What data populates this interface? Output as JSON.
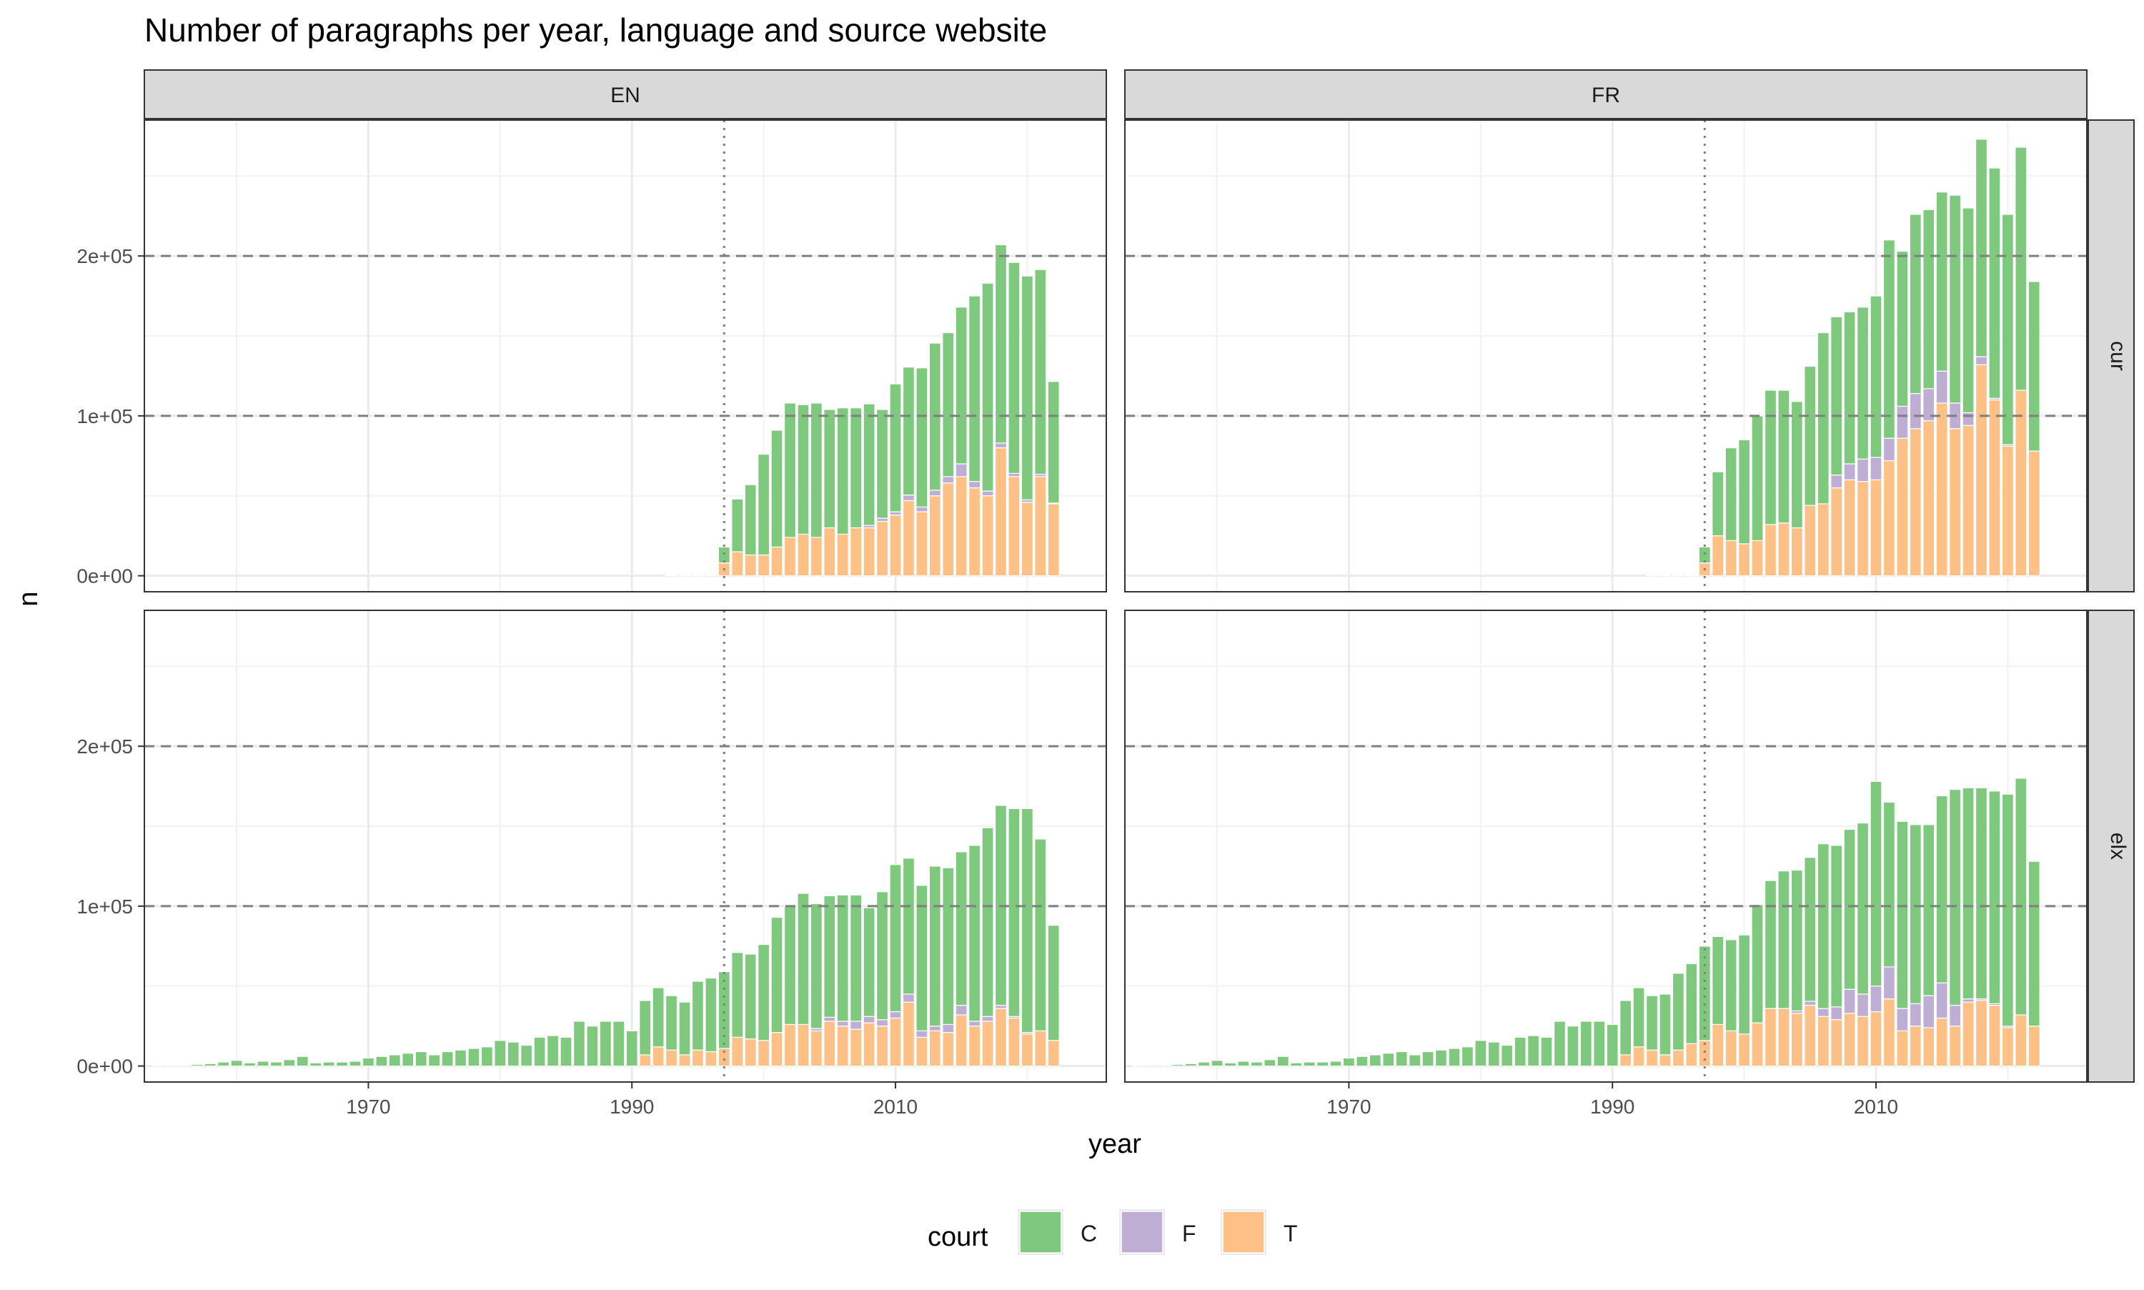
{
  "title": "Number of paragraphs per year, language and source website",
  "chart_data": {
    "type": "bar",
    "stacked": true,
    "title": "Number of paragraphs per year, language and source website",
    "xlabel": "year",
    "ylabel": "n",
    "x_ticks": [
      1970,
      1990,
      2010
    ],
    "y_ticks": [
      0,
      100000,
      200000
    ],
    "y_tick_labels": [
      "0e+00",
      "1e+05",
      "2e+05"
    ],
    "xlim": [
      1953,
      2026
    ],
    "ylim": [
      -10000,
      285000
    ],
    "reference_lines": {
      "horizontal_dashed": [
        100000,
        200000
      ],
      "vertical_dotted": 1997
    },
    "grid": true,
    "legend": {
      "title": "court",
      "position": "bottom",
      "entries": [
        "C",
        "F",
        "T"
      ]
    },
    "colors": {
      "C": "#7fc97f",
      "F": "#beaed4",
      "T": "#fdc086"
    },
    "facet_columns": [
      "EN",
      "FR"
    ],
    "facet_rows": [
      "cur",
      "elx"
    ],
    "panels": [
      {
        "col": "EN",
        "row": "cur",
        "series": {
          "x": [
            1993,
            1994,
            1995,
            1996,
            1997,
            1998,
            1999,
            2000,
            2001,
            2002,
            2003,
            2004,
            2005,
            2006,
            2007,
            2008,
            2009,
            2010,
            2011,
            2012,
            2013,
            2014,
            2015,
            2016,
            2017,
            2018,
            2019,
            2020,
            2021,
            2022
          ],
          "T": [
            300,
            300,
            300,
            300,
            8000,
            15000,
            13000,
            13000,
            18000,
            24000,
            26000,
            24000,
            30000,
            26000,
            30000,
            30000,
            34000,
            38000,
            47000,
            40000,
            50000,
            58000,
            62000,
            55000,
            50000,
            80000,
            62000,
            46000,
            62000,
            45000
          ],
          "F": [
            0,
            0,
            0,
            0,
            0,
            0,
            0,
            0,
            0,
            0,
            0,
            0,
            0,
            0,
            0,
            1500,
            2000,
            2000,
            3500,
            3000,
            3500,
            4000,
            8000,
            4000,
            3000,
            3000,
            2000,
            1500,
            1500,
            500
          ],
          "C": [
            200,
            200,
            200,
            200,
            10000,
            33000,
            44000,
            63000,
            73000,
            84000,
            81000,
            84000,
            74000,
            79000,
            75000,
            76000,
            68000,
            80000,
            80000,
            87000,
            92000,
            90000,
            98000,
            116000,
            130000,
            124000,
            132000,
            140000,
            128000,
            76000
          ]
        }
      },
      {
        "col": "FR",
        "row": "cur",
        "series": {
          "x": [
            1993,
            1994,
            1995,
            1996,
            1997,
            1998,
            1999,
            2000,
            2001,
            2002,
            2003,
            2004,
            2005,
            2006,
            2007,
            2008,
            2009,
            2010,
            2011,
            2012,
            2013,
            2014,
            2015,
            2016,
            2017,
            2018,
            2019,
            2020,
            2021,
            2022
          ],
          "T": [
            300,
            300,
            300,
            300,
            8000,
            25000,
            22000,
            20000,
            22000,
            32000,
            33000,
            30000,
            44000,
            45000,
            55000,
            60000,
            59000,
            60000,
            72000,
            86000,
            92000,
            97000,
            108000,
            92000,
            94000,
            132000,
            110000,
            81000,
            116000,
            78000
          ],
          "F": [
            0,
            0,
            0,
            0,
            0,
            0,
            0,
            0,
            0,
            0,
            0,
            0,
            0,
            0,
            8000,
            10000,
            14000,
            14000,
            14000,
            20000,
            22000,
            20000,
            20000,
            16000,
            8000,
            5000,
            1000,
            1000,
            0,
            0
          ],
          "C": [
            200,
            200,
            200,
            200,
            10000,
            40000,
            58000,
            65000,
            78000,
            84000,
            83000,
            79000,
            87000,
            107000,
            99000,
            95000,
            95000,
            101000,
            124000,
            97000,
            112000,
            112000,
            112000,
            130000,
            128000,
            136000,
            144000,
            144000,
            152000,
            106000
          ]
        }
      },
      {
        "col": "EN",
        "row": "elx",
        "series": {
          "x": [
            1954,
            1955,
            1956,
            1957,
            1958,
            1959,
            1960,
            1961,
            1962,
            1963,
            1964,
            1965,
            1966,
            1967,
            1968,
            1969,
            1970,
            1971,
            1972,
            1973,
            1974,
            1975,
            1976,
            1977,
            1978,
            1979,
            1980,
            1981,
            1982,
            1983,
            1984,
            1985,
            1986,
            1987,
            1988,
            1989,
            1990,
            1991,
            1992,
            1993,
            1994,
            1995,
            1996,
            1997,
            1998,
            1999,
            2000,
            2001,
            2002,
            2003,
            2004,
            2005,
            2006,
            2007,
            2008,
            2009,
            2010,
            2011,
            2012,
            2013,
            2014,
            2015,
            2016,
            2017,
            2018,
            2019,
            2020,
            2021,
            2022
          ],
          "T": [
            0,
            0,
            0,
            0,
            0,
            0,
            0,
            0,
            0,
            0,
            0,
            0,
            0,
            0,
            0,
            0,
            0,
            0,
            0,
            0,
            0,
            0,
            0,
            0,
            0,
            0,
            0,
            0,
            0,
            0,
            0,
            0,
            0,
            0,
            0,
            0,
            0,
            7000,
            12000,
            10000,
            7000,
            10000,
            9000,
            11000,
            18000,
            17000,
            16000,
            21000,
            26000,
            26000,
            22000,
            28000,
            25000,
            23000,
            27000,
            25000,
            30000,
            40000,
            18000,
            22000,
            21000,
            32000,
            25000,
            28000,
            36000,
            30000,
            20000,
            22000,
            16000
          ],
          "F": [
            0,
            0,
            0,
            0,
            0,
            0,
            0,
            0,
            0,
            0,
            0,
            0,
            0,
            0,
            0,
            0,
            0,
            0,
            0,
            0,
            0,
            0,
            0,
            0,
            0,
            0,
            0,
            0,
            0,
            0,
            0,
            0,
            0,
            0,
            0,
            0,
            0,
            0,
            0,
            0,
            0,
            0,
            0,
            0,
            0,
            0,
            0,
            0,
            0,
            0,
            1500,
            2500,
            3000,
            5000,
            4000,
            4000,
            4000,
            5000,
            4000,
            3000,
            5000,
            6000,
            3000,
            3000,
            2000,
            1000,
            1000,
            0,
            0
          ],
          "C": [
            500,
            600,
            600,
            1000,
            1500,
            2500,
            3500,
            2000,
            3000,
            2500,
            4000,
            6000,
            2000,
            2500,
            2500,
            3000,
            5000,
            6000,
            7000,
            8000,
            9000,
            7000,
            9000,
            10000,
            11000,
            12000,
            16000,
            15000,
            13000,
            18000,
            19000,
            18000,
            28000,
            25000,
            28000,
            28000,
            22000,
            34000,
            37000,
            34000,
            33000,
            43000,
            46000,
            48000,
            53000,
            53000,
            60000,
            72000,
            74000,
            82000,
            78000,
            76000,
            79000,
            79000,
            68000,
            80000,
            92000,
            85000,
            91000,
            100000,
            98000,
            96000,
            110000,
            118000,
            125000,
            130000,
            140000,
            120000,
            72000
          ]
        }
      },
      {
        "col": "FR",
        "row": "elx",
        "series": {
          "x": [
            1954,
            1955,
            1956,
            1957,
            1958,
            1959,
            1960,
            1961,
            1962,
            1963,
            1964,
            1965,
            1966,
            1967,
            1968,
            1969,
            1970,
            1971,
            1972,
            1973,
            1974,
            1975,
            1976,
            1977,
            1978,
            1979,
            1980,
            1981,
            1982,
            1983,
            1984,
            1985,
            1986,
            1987,
            1988,
            1989,
            1990,
            1991,
            1992,
            1993,
            1994,
            1995,
            1996,
            1997,
            1998,
            1999,
            2000,
            2001,
            2002,
            2003,
            2004,
            2005,
            2006,
            2007,
            2008,
            2009,
            2010,
            2011,
            2012,
            2013,
            2014,
            2015,
            2016,
            2017,
            2018,
            2019,
            2020,
            2021,
            2022
          ],
          "T": [
            0,
            0,
            0,
            0,
            0,
            0,
            0,
            0,
            0,
            0,
            0,
            0,
            0,
            0,
            0,
            0,
            0,
            0,
            0,
            0,
            0,
            0,
            0,
            0,
            0,
            0,
            0,
            0,
            0,
            0,
            0,
            0,
            0,
            0,
            0,
            0,
            0,
            7000,
            12000,
            10000,
            7000,
            10000,
            14000,
            16000,
            26000,
            22000,
            20000,
            27000,
            36000,
            36000,
            33000,
            38000,
            31000,
            29000,
            33000,
            31000,
            34000,
            42000,
            22000,
            25000,
            24000,
            30000,
            25000,
            40000,
            41000,
            38000,
            24000,
            32000,
            25000
          ],
          "F": [
            0,
            0,
            0,
            0,
            0,
            0,
            0,
            0,
            0,
            0,
            0,
            0,
            0,
            0,
            0,
            0,
            0,
            0,
            0,
            0,
            0,
            0,
            0,
            0,
            0,
            0,
            0,
            0,
            0,
            0,
            0,
            0,
            0,
            0,
            0,
            0,
            0,
            0,
            0,
            0,
            0,
            0,
            0,
            0,
            0,
            0,
            0,
            0,
            0,
            0,
            1500,
            2500,
            5000,
            8000,
            15000,
            14000,
            16000,
            20000,
            14000,
            14000,
            20000,
            22000,
            13000,
            2000,
            1000,
            1000,
            1000,
            0,
            0
          ],
          "C": [
            500,
            600,
            600,
            1000,
            1500,
            2500,
            3500,
            2000,
            3000,
            2500,
            4000,
            6000,
            2000,
            2500,
            2500,
            3000,
            5000,
            6000,
            7000,
            8000,
            9000,
            7000,
            9000,
            10000,
            11000,
            12000,
            16000,
            15000,
            13000,
            18000,
            19000,
            18000,
            28000,
            25000,
            28000,
            28000,
            26000,
            34000,
            37000,
            34000,
            38000,
            48000,
            50000,
            59000,
            55000,
            57000,
            62000,
            74000,
            80000,
            86000,
            88000,
            90000,
            103000,
            101000,
            100000,
            107000,
            128000,
            103000,
            117000,
            112000,
            107000,
            117000,
            135000,
            132000,
            132000,
            133000,
            145000,
            148000,
            103000
          ]
        }
      }
    ]
  }
}
